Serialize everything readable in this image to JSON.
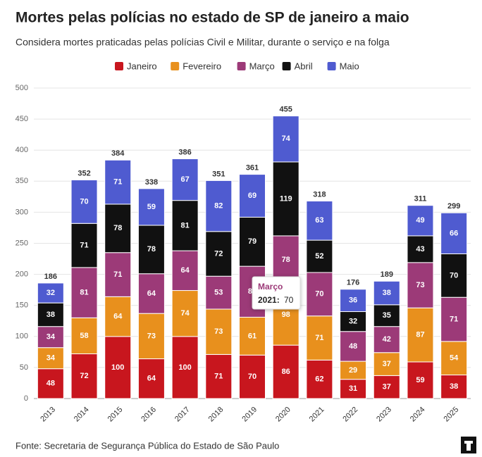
{
  "chart_data": {
    "type": "stacked_bar",
    "title": "Mortes pelas polícias no estado de SP de janeiro a maio",
    "subtitle": "Considera mortes praticadas pelas polícias Civil e Militar, durante o serviço e na folga",
    "categories": [
      "2013",
      "2014",
      "2015",
      "2016",
      "2017",
      "2018",
      "2019",
      "2020",
      "2021",
      "2022",
      "2023",
      "2024",
      "2025"
    ],
    "series": [
      {
        "name": "Janeiro",
        "color": "#c8161e",
        "values": [
          48,
          72,
          100,
          64,
          100,
          71,
          70,
          86,
          62,
          31,
          37,
          59,
          38
        ]
      },
      {
        "name": "Fevereiro",
        "color": "#e8901d",
        "values": [
          34,
          58,
          64,
          73,
          74,
          73,
          61,
          98,
          71,
          29,
          37,
          87,
          54
        ]
      },
      {
        "name": "Março",
        "color": "#9c3a78",
        "values": [
          34,
          81,
          71,
          64,
          64,
          53,
          82,
          78,
          70,
          48,
          42,
          73,
          71
        ]
      },
      {
        "name": "Abril",
        "color": "#111111",
        "values": [
          38,
          71,
          78,
          78,
          81,
          72,
          79,
          119,
          52,
          32,
          35,
          43,
          70
        ]
      },
      {
        "name": "Maio",
        "color": "#4f5bd0",
        "values": [
          32,
          70,
          71,
          59,
          67,
          82,
          69,
          74,
          63,
          36,
          38,
          49,
          66
        ]
      }
    ],
    "totals": [
      186,
      352,
      384,
      338,
      386,
      351,
      361,
      455,
      318,
      176,
      189,
      311,
      299
    ],
    "ylim": [
      0,
      500
    ],
    "yticks": [
      0,
      50,
      100,
      150,
      200,
      250,
      300,
      350,
      400,
      450,
      500
    ],
    "grid": true,
    "legend": "top",
    "tooltip": {
      "label": "2021:"
    },
    "source": "Fonte: Secretaria de Segurança Pública do Estado de São Paulo"
  }
}
